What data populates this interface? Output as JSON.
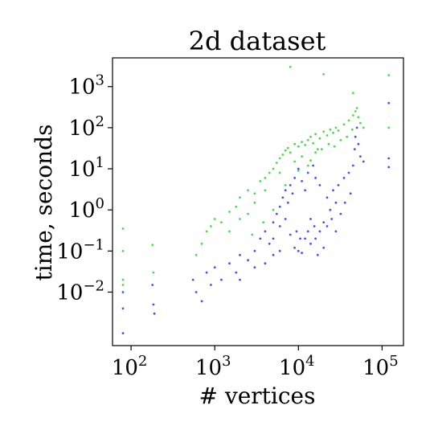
{
  "chart_data": {
    "type": "scatter",
    "title": "2d dataset",
    "xlabel": "# vertices",
    "ylabel": "time, seconds",
    "xscale": "log",
    "yscale": "log",
    "xlim": [
      60,
      180000
    ],
    "ylim": [
      0.0005,
      5000
    ],
    "grid": false,
    "legend": "none",
    "xticks": [
      {
        "value": 100,
        "base": "10",
        "exp": "2"
      },
      {
        "value": 1000,
        "base": "10",
        "exp": "3"
      },
      {
        "value": 10000,
        "base": "10",
        "exp": "4"
      },
      {
        "value": 100000,
        "base": "10",
        "exp": "5"
      }
    ],
    "yticks": [
      {
        "value": 0.01,
        "base": "10",
        "exp": "−2"
      },
      {
        "value": 0.1,
        "base": "10",
        "exp": "−1"
      },
      {
        "value": 1,
        "base": "10",
        "exp": "0"
      },
      {
        "value": 10,
        "base": "10",
        "exp": "1"
      },
      {
        "value": 100,
        "base": "10",
        "exp": "2"
      },
      {
        "value": 1000,
        "base": "10",
        "exp": "3"
      }
    ],
    "series": [
      {
        "color": "#00cc00",
        "points": [
          [
            80,
            0.35
          ],
          [
            80,
            0.1
          ],
          [
            80,
            0.02
          ],
          [
            80,
            0.015
          ],
          [
            180,
            0.14
          ],
          [
            185,
            0.03
          ],
          [
            600,
            0.08
          ],
          [
            700,
            0.15
          ],
          [
            800,
            0.3
          ],
          [
            900,
            0.4
          ],
          [
            1000,
            0.6
          ],
          [
            1200,
            0.5
          ],
          [
            1500,
            0.9
          ],
          [
            1800,
            1.2
          ],
          [
            2000,
            2
          ],
          [
            2500,
            3
          ],
          [
            3000,
            2.5
          ],
          [
            3500,
            5
          ],
          [
            4000,
            6
          ],
          [
            4500,
            8
          ],
          [
            5000,
            10
          ],
          [
            5500,
            14
          ],
          [
            6000,
            18
          ],
          [
            6500,
            22
          ],
          [
            7000,
            28
          ],
          [
            7500,
            32
          ],
          [
            8000,
            25
          ],
          [
            9000,
            40
          ],
          [
            10000,
            35
          ],
          [
            11000,
            45
          ],
          [
            12000,
            38
          ],
          [
            13000,
            50
          ],
          [
            14000,
            60
          ],
          [
            15000,
            42
          ],
          [
            16000,
            70
          ],
          [
            17000,
            30
          ],
          [
            18000,
            55
          ],
          [
            20000,
            80
          ],
          [
            22000,
            65
          ],
          [
            24000,
            90
          ],
          [
            26000,
            75
          ],
          [
            28000,
            100
          ],
          [
            30000,
            85
          ],
          [
            35000,
            120
          ],
          [
            40000,
            150
          ],
          [
            45000,
            200
          ],
          [
            48000,
            250
          ],
          [
            50000,
            300
          ],
          [
            52000,
            180
          ],
          [
            55000,
            130
          ],
          [
            60000,
            100
          ],
          [
            8000,
            3000
          ],
          [
            20000,
            2000
          ],
          [
            45000,
            700
          ],
          [
            120000,
            1900
          ],
          [
            120000,
            100
          ],
          [
            2500,
            0.8
          ],
          [
            3000,
            1.5
          ],
          [
            4000,
            3
          ],
          [
            6000,
            8
          ],
          [
            9000,
            15
          ],
          [
            11000,
            20
          ],
          [
            13000,
            12
          ],
          [
            16000,
            25
          ],
          [
            19000,
            30
          ],
          [
            23000,
            40
          ],
          [
            27000,
            35
          ],
          [
            32000,
            50
          ],
          [
            38000,
            60
          ],
          [
            44000,
            90
          ],
          [
            5000,
            1
          ],
          [
            7000,
            4
          ],
          [
            10000,
            9
          ],
          [
            14000,
            16
          ],
          [
            1500,
            0.3
          ],
          [
            2000,
            0.6
          ],
          [
            2800,
            0.25
          ],
          [
            3800,
            0.5
          ]
        ]
      },
      {
        "color": "#0000ff",
        "points": [
          [
            80,
            0.01
          ],
          [
            80,
            0.004
          ],
          [
            80,
            0.001
          ],
          [
            180,
            0.015
          ],
          [
            185,
            0.005
          ],
          [
            190,
            0.003
          ],
          [
            550,
            0.02
          ],
          [
            600,
            0.01
          ],
          [
            700,
            0.006
          ],
          [
            800,
            0.03
          ],
          [
            900,
            0.015
          ],
          [
            1000,
            0.04
          ],
          [
            1200,
            0.02
          ],
          [
            1500,
            0.05
          ],
          [
            1800,
            0.03
          ],
          [
            2000,
            0.08
          ],
          [
            2500,
            0.06
          ],
          [
            3000,
            0.1
          ],
          [
            3500,
            0.2
          ],
          [
            4000,
            0.3
          ],
          [
            4500,
            0.15
          ],
          [
            5000,
            0.5
          ],
          [
            5500,
            0.8
          ],
          [
            6000,
            1.2
          ],
          [
            6500,
            2
          ],
          [
            7000,
            3
          ],
          [
            7500,
            1.5
          ],
          [
            8000,
            4
          ],
          [
            8500,
            2.5
          ],
          [
            9000,
            6
          ],
          [
            9500,
            0.3
          ],
          [
            10000,
            0.1
          ],
          [
            10000,
            10
          ],
          [
            10500,
            0.2
          ],
          [
            11000,
            5
          ],
          [
            12000,
            3
          ],
          [
            13000,
            8
          ],
          [
            14000,
            0.15
          ],
          [
            15000,
            12
          ],
          [
            15500,
            0.4
          ],
          [
            16000,
            6
          ],
          [
            17000,
            0.08
          ],
          [
            18000,
            4
          ],
          [
            20000,
            0.5
          ],
          [
            22000,
            2
          ],
          [
            24000,
            1
          ],
          [
            26000,
            3
          ],
          [
            28000,
            1.5
          ],
          [
            30000,
            4
          ],
          [
            35000,
            6
          ],
          [
            40000,
            8
          ],
          [
            45000,
            12
          ],
          [
            47000,
            30
          ],
          [
            48000,
            60
          ],
          [
            50000,
            100
          ],
          [
            52000,
            40
          ],
          [
            55000,
            20
          ],
          [
            60000,
            15
          ],
          [
            120000,
            400
          ],
          [
            120000,
            18
          ],
          [
            120000,
            11
          ],
          [
            5000,
            0.2
          ],
          [
            6000,
            0.4
          ],
          [
            7000,
            0.6
          ],
          [
            8000,
            0.25
          ],
          [
            9000,
            0.12
          ],
          [
            11000,
            0.09
          ],
          [
            12000,
            0.2
          ],
          [
            13000,
            0.3
          ],
          [
            14000,
            0.6
          ],
          [
            16000,
            0.2
          ],
          [
            18000,
            0.3
          ],
          [
            20000,
            0.12
          ],
          [
            22000,
            0.4
          ],
          [
            25000,
            0.6
          ],
          [
            28000,
            0.3
          ],
          [
            32000,
            0.8
          ],
          [
            36000,
            1.5
          ],
          [
            42000,
            2.5
          ],
          [
            2000,
            0.02
          ],
          [
            3000,
            0.04
          ],
          [
            4000,
            0.05
          ],
          [
            5000,
            0.08
          ],
          [
            6000,
            0.1
          ]
        ]
      }
    ]
  }
}
